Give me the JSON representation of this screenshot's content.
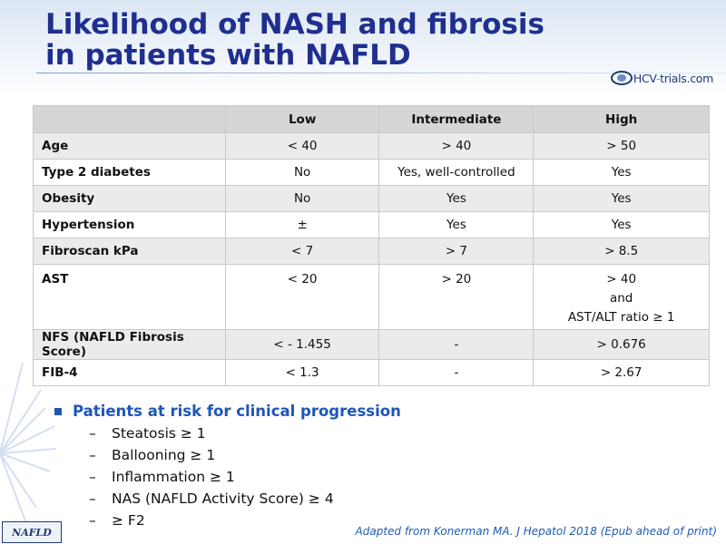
{
  "slide": {
    "title_line1": "Likelihood of NASH and fibrosis",
    "title_line2": "in patients with NAFLD",
    "logo_text_a": "HCV",
    "logo_text_b": "-",
    "logo_text_c": "trials.com",
    "footer_tag": "NAFLD",
    "source": "Adapted from Konerman MA. J Hepatol 2018 (Epub ahead of print)"
  },
  "table": {
    "headers": [
      "",
      "Low",
      "Intermediate",
      "High"
    ],
    "rows": [
      {
        "label": "Age",
        "low": "< 40",
        "mid": "> 40",
        "high": "> 50"
      },
      {
        "label": "Type 2 diabetes",
        "low": "No",
        "mid": "Yes, well-controlled",
        "high": "Yes"
      },
      {
        "label": "Obesity",
        "low": "No",
        "mid": "Yes",
        "high": "Yes"
      },
      {
        "label": "Hypertension",
        "low": "±",
        "mid": "Yes",
        "high": "Yes"
      },
      {
        "label": "Fibroscan  kPa",
        "low": "< 7",
        "mid": "> 7",
        "high": "> 8.5"
      },
      {
        "label": "AST",
        "low": "< 20",
        "mid": "> 20",
        "high_lines": [
          "> 40",
          "and",
          "AST/ALT ratio ≥ 1"
        ]
      },
      {
        "label": "NFS (NAFLD Fibrosis  Score)",
        "low": "< - 1.455",
        "mid": "-",
        "high": "> 0.676"
      },
      {
        "label": "FIB-4",
        "low": "< 1.3",
        "mid": "-",
        "high": "> 2.67"
      }
    ]
  },
  "bullets": {
    "main": "Patients at risk for clinical progression",
    "dash": "–",
    "items": [
      "Steatosis ≥ 1",
      "Ballooning ≥ 1",
      "Inflammation  ≥ 1",
      "NAS  (NAFLD Activity Score) ≥ 4",
      "≥ F2"
    ]
  },
  "colors": {
    "title": "#1f2f8f",
    "bullet_blue": "#1d56b8",
    "header_bg": "#d6d6d6",
    "band_bg": "#ebebeb"
  }
}
